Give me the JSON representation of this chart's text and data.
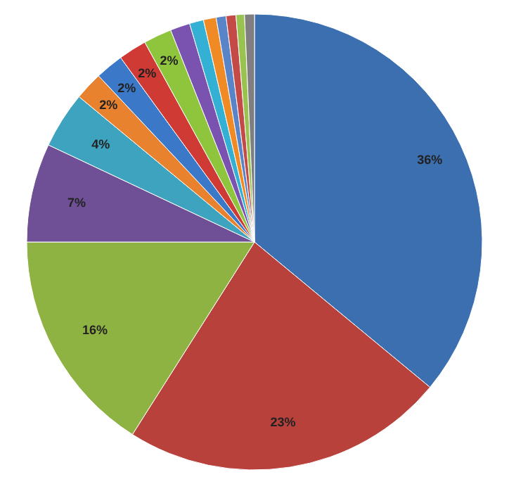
{
  "chart_data": {
    "type": "pie",
    "categories": [
      null,
      null,
      null,
      null,
      null,
      null,
      null,
      null,
      null,
      null,
      null,
      null,
      null,
      null,
      null,
      null
    ],
    "values": [
      36,
      23,
      16,
      7,
      4,
      2,
      2,
      2,
      2,
      1.4,
      1.0,
      0.9,
      0.7,
      0.7,
      0.6,
      0.7
    ],
    "value_labels": [
      "36%",
      "23%",
      "16%",
      "7%",
      "4%",
      "2%",
      "2%",
      "2%",
      "2%",
      null,
      null,
      null,
      null,
      null,
      null,
      null
    ],
    "colors": [
      "#3b6fb0",
      "#b8413c",
      "#8fb343",
      "#6f4f96",
      "#3ea3bf",
      "#e8822e",
      "#3b78c8",
      "#cf3a35",
      "#8fc43d",
      "#7a52b0",
      "#33b0d4",
      "#f08a24",
      "#5a84c8",
      "#c44a48",
      "#9ac250",
      "#7f7f7f"
    ]
  }
}
